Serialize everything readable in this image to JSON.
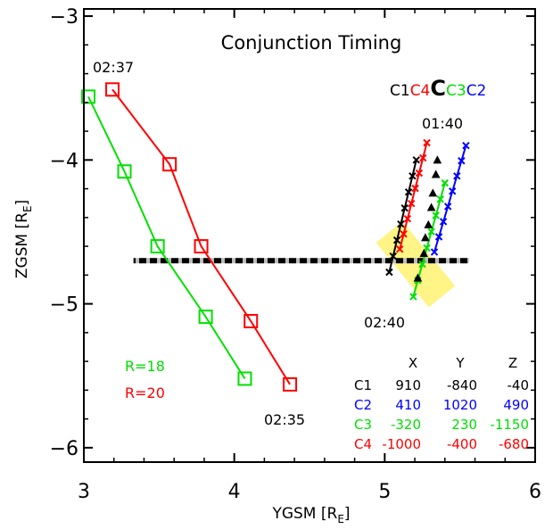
{
  "chart_data": {
    "type": "scatter",
    "title": "Conjunction Timing",
    "xlabel": "YGSM [R",
    "xlabel_sub": "E",
    "xlabel_end": "]",
    "ylabel": "ZGSM [R",
    "ylabel_sub": "E",
    "ylabel_end": "]",
    "xlim": [
      3,
      6
    ],
    "ylim": [
      -6.1,
      -2.95
    ],
    "xticks": [
      3,
      4,
      5,
      6
    ],
    "yticks": [
      -3,
      -4,
      -5,
      -6
    ],
    "xtick_labels": [
      "3",
      "4",
      "5",
      "6"
    ],
    "ytick_labels": [
      "−3",
      "−4",
      "−5",
      "−6"
    ],
    "reference_z": -4.7,
    "series": [
      {
        "name": "R=18",
        "color": "#00e000",
        "marker": "square",
        "points": [
          [
            3.03,
            -3.56
          ],
          [
            3.27,
            -4.08
          ],
          [
            3.49,
            -4.6
          ],
          [
            3.81,
            -5.09
          ],
          [
            4.07,
            -5.52
          ]
        ]
      },
      {
        "name": "R=20",
        "color": "#ff0000",
        "marker": "square",
        "points": [
          [
            3.19,
            -3.51
          ],
          [
            3.57,
            -4.03
          ],
          [
            3.78,
            -4.6
          ],
          [
            4.11,
            -5.12
          ],
          [
            4.37,
            -5.56
          ]
        ]
      },
      {
        "name": "C1",
        "color": "#000000",
        "marker": "cross",
        "points": [
          [
            5.21,
            -4.0
          ],
          [
            5.03,
            -4.78
          ]
        ]
      },
      {
        "name": "C4",
        "color": "#ff0000",
        "marker": "cross",
        "points": [
          [
            5.28,
            -3.88
          ],
          [
            5.1,
            -4.62
          ]
        ]
      },
      {
        "name": "C3",
        "color": "#00e000",
        "marker": "cross",
        "points": [
          [
            5.4,
            -4.16
          ],
          [
            5.19,
            -4.95
          ]
        ]
      },
      {
        "name": "C2",
        "color": "#0000ff",
        "marker": "cross",
        "points": [
          [
            5.54,
            -3.9
          ],
          [
            5.33,
            -4.64
          ]
        ]
      }
    ],
    "center_points": [
      [
        5.35,
        -4.0
      ],
      [
        5.34,
        -4.1
      ],
      [
        5.32,
        -4.23
      ],
      [
        5.31,
        -4.33
      ],
      [
        5.29,
        -4.45
      ],
      [
        5.27,
        -4.54
      ],
      [
        5.26,
        -4.65
      ],
      [
        5.22,
        -4.82
      ]
    ],
    "annotations": {
      "time_start_squares": "02:37",
      "time_end_squares": "02:35",
      "time_start_crosses": "01:40",
      "time_end_crosses": "02:40",
      "r18": "R=18",
      "r20": "R=20"
    },
    "legend": {
      "placement": "top-right",
      "items": [
        {
          "text": "C1",
          "color": "#000000"
        },
        {
          "text": "C4",
          "color": "#ff0000"
        },
        {
          "text": "C",
          "color": "#000000"
        },
        {
          "text": "C3",
          "color": "#00e000"
        },
        {
          "text": "C2",
          "color": "#0000ff"
        }
      ]
    },
    "table": {
      "headers": [
        "X",
        "Y",
        "Z"
      ],
      "rows": [
        {
          "name": "C1",
          "color": "#000000",
          "values": [
            "910",
            "-840",
            "-40"
          ]
        },
        {
          "name": "C2",
          "color": "#0000ff",
          "values": [
            "410",
            "1020",
            "490"
          ]
        },
        {
          "name": "C3",
          "color": "#00e000",
          "values": [
            "-320",
            "230",
            "-1150"
          ]
        },
        {
          "name": "C4",
          "color": "#ff0000",
          "values": [
            "-1000",
            "-400",
            "-680"
          ]
        }
      ]
    }
  }
}
